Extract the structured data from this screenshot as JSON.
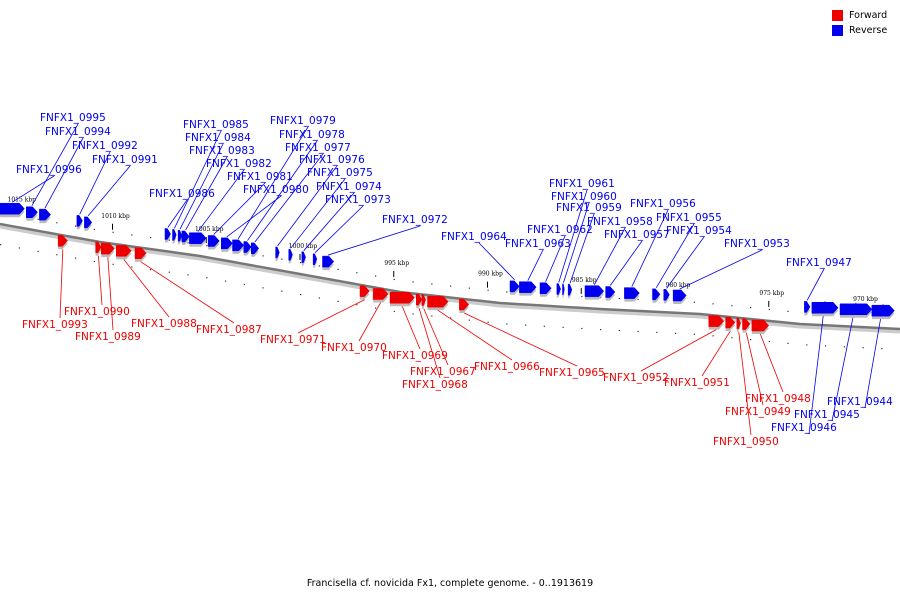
{
  "colors": {
    "forward": "#ee0000",
    "reverse": "#0000ee",
    "backbone": "#777777"
  },
  "legend": [
    {
      "label": "Forward",
      "color": "#ee0000"
    },
    {
      "label": "Reverse",
      "color": "#0000ee"
    }
  ],
  "caption": "Francisella cf. novicida Fx1, complete genome. - 0..1913619",
  "scale": {
    "start_kbp": 1016,
    "end_kbp": 968
  },
  "ticks": [
    {
      "pos_kbp": 1015,
      "label": "1015 kbp"
    },
    {
      "pos_kbp": 1010,
      "label": "1010 kbp"
    },
    {
      "pos_kbp": 1005,
      "label": "1005 kbp"
    },
    {
      "pos_kbp": 1000,
      "label": "1000 kbp"
    },
    {
      "pos_kbp": 995,
      "label": "995 kbp"
    },
    {
      "pos_kbp": 990,
      "label": "990 kbp"
    },
    {
      "pos_kbp": 985,
      "label": "985 kbp"
    },
    {
      "pos_kbp": 980,
      "label": "980 kbp"
    },
    {
      "pos_kbp": 975,
      "label": "975 kbp"
    },
    {
      "pos_kbp": 970,
      "label": "970 kbp"
    }
  ],
  "genes": [
    {
      "name": "FNFX1_0996",
      "strand": "reverse",
      "start_kbp": 1016.0,
      "end_kbp": 1014.7
    },
    {
      "name": "FNFX1_0995",
      "strand": "reverse",
      "start_kbp": 1014.6,
      "end_kbp": 1014.0
    },
    {
      "name": "FNFX1_0994",
      "strand": "reverse",
      "start_kbp": 1013.9,
      "end_kbp": 1013.3
    },
    {
      "name": "FNFX1_0993",
      "strand": "forward",
      "start_kbp": 1012.9,
      "end_kbp": 1012.4
    },
    {
      "name": "FNFX1_0992",
      "strand": "reverse",
      "start_kbp": 1011.9,
      "end_kbp": 1011.6
    },
    {
      "name": "FNFX1_0991",
      "strand": "reverse",
      "start_kbp": 1011.5,
      "end_kbp": 1011.1
    },
    {
      "name": "FNFX1_0990",
      "strand": "forward",
      "start_kbp": 1010.9,
      "end_kbp": 1010.6
    },
    {
      "name": "FNFX1_0989",
      "strand": "forward",
      "start_kbp": 1010.6,
      "end_kbp": 1009.9
    },
    {
      "name": "FNFX1_0988",
      "strand": "forward",
      "start_kbp": 1009.8,
      "end_kbp": 1009.0
    },
    {
      "name": "FNFX1_0987",
      "strand": "forward",
      "start_kbp": 1008.8,
      "end_kbp": 1008.2
    },
    {
      "name": "FNFX1_0986",
      "strand": "reverse",
      "start_kbp": 1007.2,
      "end_kbp": 1006.9
    },
    {
      "name": "FNFX1_0985",
      "strand": "reverse",
      "start_kbp": 1006.8,
      "end_kbp": 1006.6
    },
    {
      "name": "FNFX1_0984",
      "strand": "reverse",
      "start_kbp": 1006.5,
      "end_kbp": 1006.3
    },
    {
      "name": "FNFX1_0983",
      "strand": "reverse",
      "start_kbp": 1006.3,
      "end_kbp": 1005.9
    },
    {
      "name": "FNFX1_0982",
      "strand": "reverse",
      "start_kbp": 1005.9,
      "end_kbp": 1005.0
    },
    {
      "name": "FNFX1_0981",
      "strand": "reverse",
      "start_kbp": 1004.9,
      "end_kbp": 1004.3
    },
    {
      "name": "FNFX1_0980",
      "strand": "reverse",
      "start_kbp": 1004.2,
      "end_kbp": 1003.6
    },
    {
      "name": "FNFX1_0979",
      "strand": "reverse",
      "start_kbp": 1003.6,
      "end_kbp": 1003.0
    },
    {
      "name": "FNFX1_0978",
      "strand": "reverse",
      "start_kbp": 1003.0,
      "end_kbp": 1002.6
    },
    {
      "name": "FNFX1_0977",
      "strand": "reverse",
      "start_kbp": 1002.6,
      "end_kbp": 1002.2
    },
    {
      "name": "FNFX1_0976",
      "strand": "reverse",
      "start_kbp": 1001.3,
      "end_kbp": 1001.1
    },
    {
      "name": "FNFX1_0975",
      "strand": "reverse",
      "start_kbp": 1000.6,
      "end_kbp": 1000.4
    },
    {
      "name": "FNFX1_0974",
      "strand": "reverse",
      "start_kbp": 999.9,
      "end_kbp": 999.7
    },
    {
      "name": "FNFX1_0973",
      "strand": "reverse",
      "start_kbp": 999.3,
      "end_kbp": 999.1
    },
    {
      "name": "FNFX1_0972",
      "strand": "reverse",
      "start_kbp": 998.8,
      "end_kbp": 998.2
    },
    {
      "name": "FNFX1_0971",
      "strand": "forward",
      "start_kbp": 996.8,
      "end_kbp": 996.3
    },
    {
      "name": "FNFX1_0970",
      "strand": "forward",
      "start_kbp": 996.1,
      "end_kbp": 995.3
    },
    {
      "name": "FNFX1_0969",
      "strand": "forward",
      "start_kbp": 995.2,
      "end_kbp": 993.9
    },
    {
      "name": "FNFX1_0968",
      "strand": "forward",
      "start_kbp": 993.8,
      "end_kbp": 993.5
    },
    {
      "name": "FNFX1_0967",
      "strand": "forward",
      "start_kbp": 993.5,
      "end_kbp": 993.3
    },
    {
      "name": "FNFX1_0966",
      "strand": "forward",
      "start_kbp": 993.2,
      "end_kbp": 992.1
    },
    {
      "name": "FNFX1_0965",
      "strand": "forward",
      "start_kbp": 991.5,
      "end_kbp": 991.0
    },
    {
      "name": "FNFX1_0964",
      "strand": "reverse",
      "start_kbp": 988.8,
      "end_kbp": 988.3
    },
    {
      "name": "FNFX1_0963",
      "strand": "reverse",
      "start_kbp": 988.3,
      "end_kbp": 987.4
    },
    {
      "name": "FNFX1_0962",
      "strand": "reverse",
      "start_kbp": 987.2,
      "end_kbp": 986.6
    },
    {
      "name": "FNFX1_0961",
      "strand": "reverse",
      "start_kbp": 986.3,
      "end_kbp": 986.1
    },
    {
      "name": "FNFX1_0960",
      "strand": "reverse",
      "start_kbp": 986.0,
      "end_kbp": 985.9
    },
    {
      "name": "FNFX1_0959",
      "strand": "reverse",
      "start_kbp": 985.7,
      "end_kbp": 985.5
    },
    {
      "name": "FNFX1_0958",
      "strand": "reverse",
      "start_kbp": 984.8,
      "end_kbp": 983.8
    },
    {
      "name": "FNFX1_0957",
      "strand": "reverse",
      "start_kbp": 983.7,
      "end_kbp": 983.2
    },
    {
      "name": "FNFX1_0956",
      "strand": "reverse",
      "start_kbp": 982.7,
      "end_kbp": 981.9
    },
    {
      "name": "FNFX1_0955",
      "strand": "reverse",
      "start_kbp": 981.2,
      "end_kbp": 980.8
    },
    {
      "name": "FNFX1_0954",
      "strand": "reverse",
      "start_kbp": 980.6,
      "end_kbp": 980.3
    },
    {
      "name": "FNFX1_0953",
      "strand": "reverse",
      "start_kbp": 980.1,
      "end_kbp": 979.4
    },
    {
      "name": "FNFX1_0952",
      "strand": "forward",
      "start_kbp": 978.2,
      "end_kbp": 977.4
    },
    {
      "name": "FNFX1_0951",
      "strand": "forward",
      "start_kbp": 977.3,
      "end_kbp": 976.8
    },
    {
      "name": "FNFX1_0950",
      "strand": "forward",
      "start_kbp": 976.7,
      "end_kbp": 976.5
    },
    {
      "name": "FNFX1_0949",
      "strand": "forward",
      "start_kbp": 976.4,
      "end_kbp": 976.0
    },
    {
      "name": "FNFX1_0948",
      "strand": "forward",
      "start_kbp": 975.9,
      "end_kbp": 975.0
    },
    {
      "name": "FNFX1_0947",
      "strand": "reverse",
      "start_kbp": 973.1,
      "end_kbp": 972.8
    },
    {
      "name": "FNFX1_0946",
      "strand": "reverse",
      "start_kbp": 972.7,
      "end_kbp": 971.3
    },
    {
      "name": "FNFX1_0945",
      "strand": "reverse",
      "start_kbp": 971.2,
      "end_kbp": 969.5
    },
    {
      "name": "FNFX1_0944",
      "strand": "reverse",
      "start_kbp": 969.5,
      "end_kbp": 968.3
    }
  ]
}
